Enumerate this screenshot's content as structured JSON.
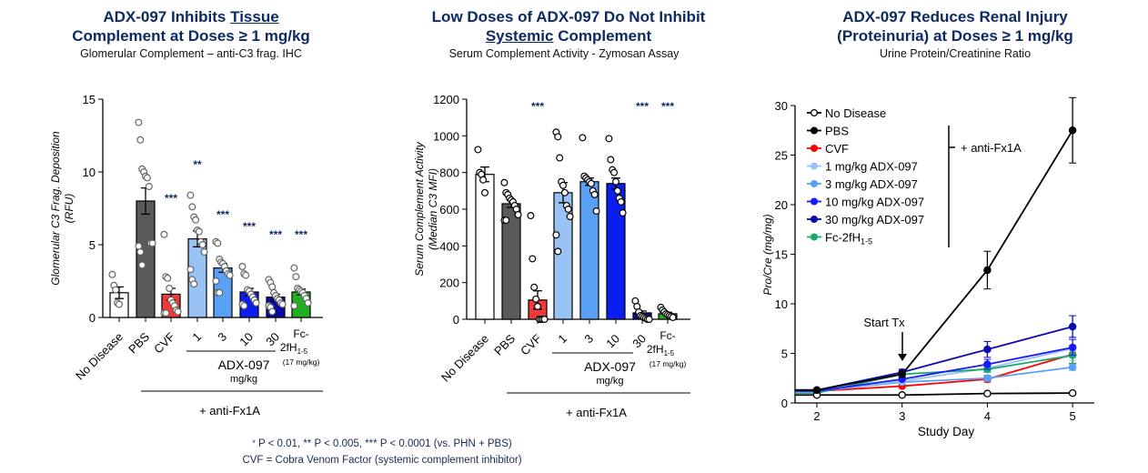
{
  "colors": {
    "no_disease": "#ffffff",
    "pbs": "#5a5a5a",
    "cvf": "#f03a3a",
    "adx1": "#99c2f5",
    "adx3": "#5aa0f5",
    "adx10": "#0a1ef0",
    "adx30": "#0a0aa0",
    "fc": "#22b022",
    "title": "#0e2a63"
  },
  "chart_data": [
    {
      "type": "bar",
      "title_parts": [
        "ADX-097 Inhibits ",
        "Tissue",
        " Complement at Doses ≥ 1 mg/kg"
      ],
      "subtitle": "Glomerular Complement – anti-C3 frag. IHC",
      "ylabel": "Glomerular C3 Frag. Deposition",
      "ylabel2": "(RFU)",
      "ylim": [
        0,
        15
      ],
      "yticks": [
        "0",
        "5",
        "10",
        "15"
      ],
      "ytick_values": [
        0,
        5,
        10,
        15
      ],
      "categories": [
        "No Disease",
        "PBS",
        "CVF",
        "1",
        "3",
        "10",
        "30",
        "Fc-2fH1-5"
      ],
      "values": [
        1.7,
        8.0,
        1.6,
        5.4,
        3.4,
        1.75,
        1.4,
        1.75
      ],
      "sem": [
        0.4,
        0.9,
        0.4,
        0.55,
        0.3,
        0.25,
        0.2,
        0.2
      ],
      "significance": [
        "",
        "",
        "***",
        "**",
        "***",
        "***",
        "***",
        "***"
      ],
      "points": [
        [
          2.95,
          2.2,
          1.9,
          1.0,
          0.9
        ],
        [
          13.4,
          12.2,
          10.2,
          10.0,
          9.7,
          9.6,
          9.0,
          5.1,
          5.1,
          4.9,
          4.5,
          3.6
        ],
        [
          5.7,
          2.8,
          2.7,
          2.0,
          1.2,
          1.0,
          0.8,
          0.5,
          0.4,
          0.3,
          0.3
        ],
        [
          8.4,
          7.6,
          6.9,
          6.7,
          6.0,
          5.9,
          5.2,
          5.0,
          4.5,
          3.3,
          2.6,
          2.3
        ],
        [
          5.2,
          5.1,
          4.0,
          3.8,
          3.7,
          3.5,
          3.2,
          3.0,
          2.9,
          2.5,
          1.7,
          1.7
        ],
        [
          3.5,
          3.0,
          2.9,
          1.9,
          1.8,
          1.6,
          1.4,
          1.2,
          1.0,
          0.9,
          0.8
        ],
        [
          2.6,
          2.4,
          2.1,
          1.7,
          1.5,
          1.3,
          1.2,
          1.0,
          0.9,
          0.8,
          0.7,
          0.4
        ],
        [
          3.4,
          2.8,
          2.0,
          1.9,
          1.8,
          1.7,
          1.5,
          1.3,
          1.0,
          0.8
        ]
      ],
      "group_label": "ADX-097",
      "group_unit": "mg/kg",
      "fc_label": [
        "Fc-",
        "2fH",
        "1-5",
        "(17 mg/kg)"
      ],
      "bottom_label": "+ anti-Fx1A"
    },
    {
      "type": "bar",
      "title_parts": [
        "Low Doses of ADX-097 Do Not Inhibit ",
        "Systemic",
        " Complement"
      ],
      "subtitle": "Serum Complement Activity - Zymosan Assay",
      "ylabel": "Serum Complement Activity",
      "ylabel2": "(Median C3 MFI)",
      "ylim": [
        0,
        1200
      ],
      "yticks": [
        "0",
        "200",
        "400",
        "600",
        "800",
        "1000",
        "1200"
      ],
      "ytick_values": [
        0,
        200,
        400,
        600,
        800,
        1000,
        1200
      ],
      "categories": [
        "No Disease",
        "PBS",
        "CVF",
        "1",
        "3",
        "10",
        "30",
        "Fc-2fH1-5"
      ],
      "values": [
        790,
        630,
        105,
        690,
        750,
        740,
        35,
        30
      ],
      "sem": [
        40,
        20,
        50,
        55,
        20,
        30,
        10,
        8
      ],
      "significance": [
        "",
        "",
        "***",
        "",
        "",
        "",
        "***",
        "***"
      ],
      "points": [
        [
          925,
          800,
          790,
          760,
          690
        ],
        [
          745,
          690,
          680,
          660,
          650,
          640,
          620,
          600,
          570,
          540,
          540
        ],
        [
          565,
          330,
          175,
          110,
          70,
          0,
          0,
          0,
          0
        ],
        [
          1020,
          995,
          880,
          750,
          730,
          690,
          620,
          600,
          560,
          460,
          370
        ],
        [
          990,
          780,
          770,
          760,
          750,
          740,
          700,
          680,
          590
        ],
        [
          985,
          870,
          815,
          800,
          750,
          700,
          660,
          640,
          580
        ],
        [
          100,
          70,
          40,
          20,
          15,
          10,
          5,
          0,
          0
        ],
        [
          65,
          50,
          40,
          30,
          25,
          20,
          15,
          10
        ]
      ],
      "group_label": "ADX-097",
      "group_unit": "mg/kg",
      "fc_label": [
        "Fc-",
        "2fH",
        "1-5",
        "(17 mg/kg)"
      ],
      "bottom_label": "+ anti-Fx1A"
    },
    {
      "type": "line",
      "title_parts": [
        "ADX-097 Reduces Renal Injury (Proteinuria) at Doses ≥ 1 mg/kg"
      ],
      "title_lines": [
        "ADX-097 Reduces Renal Injury",
        "(Proteinuria) at Doses ≥ 1 mg/kg"
      ],
      "subtitle": "Urine Protein/Creatinine Ratio",
      "xlabel": "Study Day",
      "ylabel": "Pro/Cre (mg/mg)",
      "x": [
        2,
        3,
        4,
        5
      ],
      "xticks": [
        "2",
        "3",
        "4",
        "5"
      ],
      "ylim": [
        0,
        30
      ],
      "yticks": [
        "0",
        "5",
        "10",
        "15",
        "20",
        "25",
        "30"
      ],
      "ytick_values": [
        0,
        5,
        10,
        15,
        20,
        25,
        30
      ],
      "annotation": "Start Tx",
      "annotation_x": 3,
      "bracket_label": "+ anti-Fx1A",
      "legend_position": "top-left",
      "series": [
        {
          "name": "No Disease",
          "color": "#000000",
          "hollow": true,
          "values": [
            0.8,
            0.8,
            0.95,
            1.0
          ],
          "sem": [
            0.1,
            0.1,
            0.1,
            0.1
          ]
        },
        {
          "name": "PBS",
          "color": "#000000",
          "values": [
            1.3,
            2.9,
            13.4,
            27.5
          ],
          "sem": [
            0.2,
            0.3,
            1.9,
            3.3
          ]
        },
        {
          "name": "CVF",
          "color": "#ff0000",
          "values": [
            1.2,
            1.7,
            2.4,
            4.9
          ],
          "sem": [
            0.1,
            0.2,
            0.3,
            0.9
          ]
        },
        {
          "name": "1 mg/kg ADX-097",
          "color": "#99c2f5",
          "values": [
            1.2,
            2.2,
            3.5,
            5.5
          ],
          "sem": [
            0.1,
            0.2,
            0.4,
            1.2
          ]
        },
        {
          "name": "3 mg/kg ADX-097",
          "color": "#5aa0f5",
          "values": [
            1.2,
            2.1,
            2.5,
            3.6
          ],
          "sem": [
            0.1,
            0.2,
            0.3,
            0.3
          ]
        },
        {
          "name": "10 mg/kg ADX-097",
          "color": "#1a1aff",
          "values": [
            1.2,
            2.4,
            3.9,
            5.6
          ],
          "sem": [
            0.1,
            0.2,
            0.5,
            0.8
          ]
        },
        {
          "name": "30 mg/kg ADX-097",
          "color": "#0a0ab0",
          "values": [
            1.3,
            3.1,
            5.4,
            7.7
          ],
          "sem": [
            0.1,
            0.3,
            0.8,
            1.1
          ]
        },
        {
          "name": "Fc-2fH1-5",
          "legend_base": "Fc-2fH",
          "legend_sub": "1-5",
          "color": "#1aaa6e",
          "values": [
            1.0,
            2.9,
            3.4,
            4.8
          ],
          "sem": [
            0.1,
            0.2,
            0.3,
            0.8
          ]
        }
      ]
    }
  ],
  "footnote": {
    "line1_star": "*",
    "line1_rest": " P < 0.01, ** P < 0.005, *** P < 0.0001 (vs. PHN + PBS)",
    "line2": "CVF = Cobra Venom Factor (systemic complement inhibitor)"
  }
}
